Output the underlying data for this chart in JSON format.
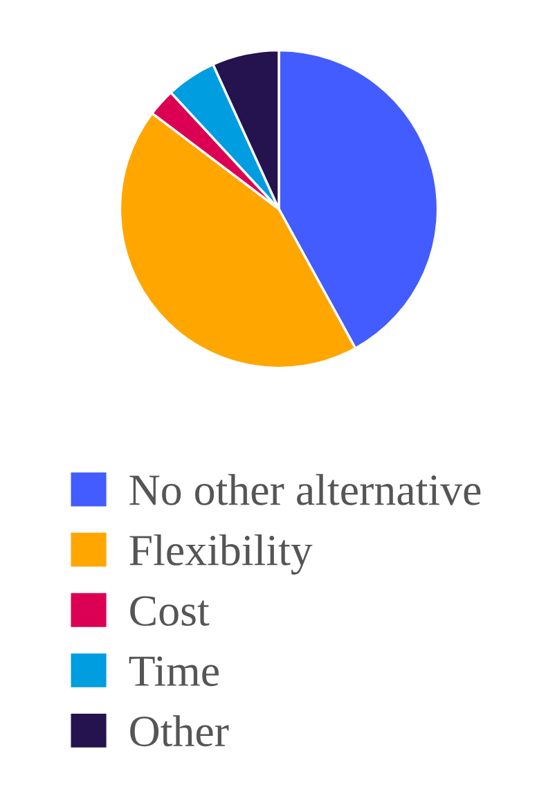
{
  "chart_data": {
    "type": "pie",
    "categories": [
      "No other alternative",
      "Flexibility",
      "Cost",
      "Time",
      "Other"
    ],
    "values": [
      42.0,
      43.3,
      2.8,
      5.1,
      6.8
    ],
    "colors": [
      "#425cff",
      "#ffa600",
      "#dc0055",
      "#009de0",
      "#24134f"
    ],
    "legend": "bottom"
  }
}
